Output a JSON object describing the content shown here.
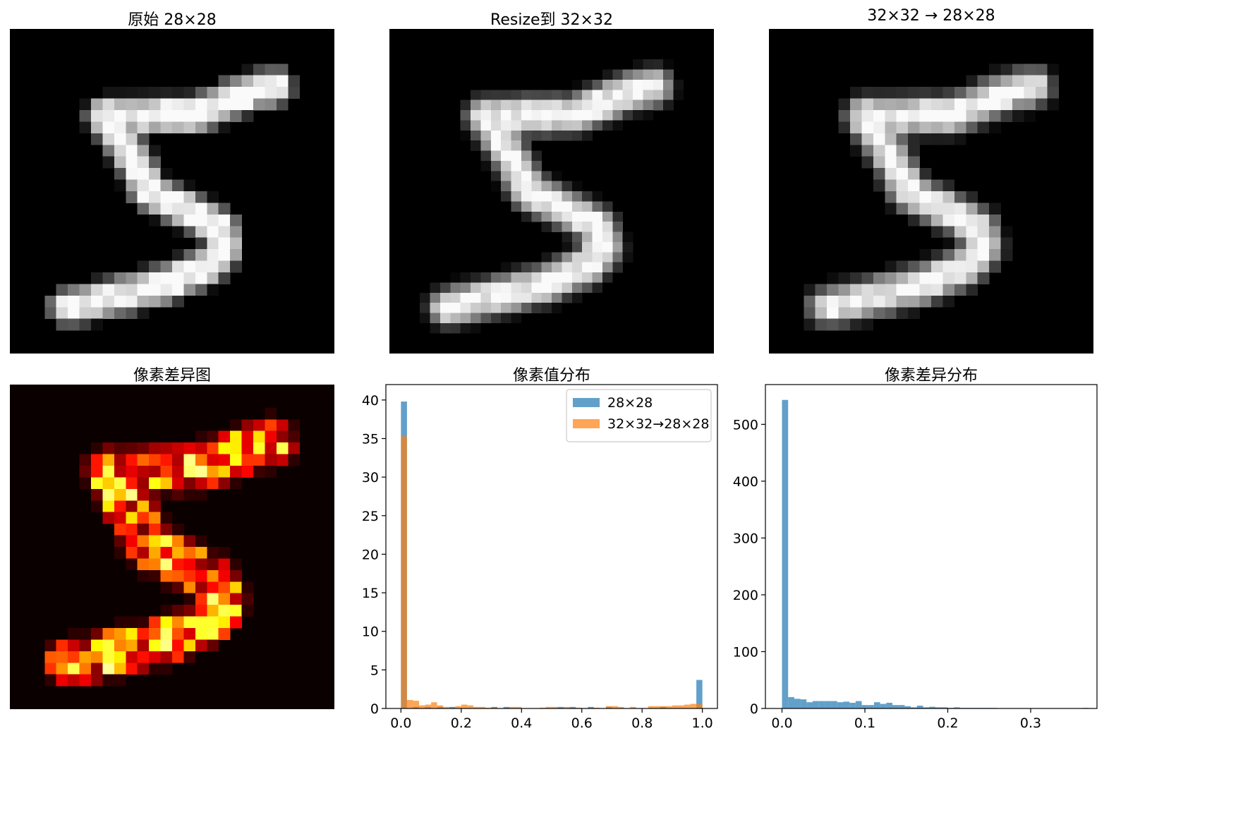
{
  "panels": {
    "original": {
      "title": "原始 28×28"
    },
    "resized": {
      "title": "Resize到 32×32"
    },
    "back": {
      "title": "32×32 → 28×28"
    },
    "diffmap": {
      "title": "像素差异图"
    },
    "hist_pixels": {
      "title": "像素值分布"
    },
    "hist_diff": {
      "title": "像素差异分布"
    }
  },
  "colors": {
    "series_blue": "#1f77b4",
    "series_orange": "#ff7f0e",
    "image_bg": "#000000",
    "heat_low": "#0b0000",
    "heat_high": "#ffffff"
  },
  "chart_data": [
    {
      "type": "heatmap",
      "title": "原始 28×28",
      "colormap": "gray",
      "shape": [
        28,
        28
      ],
      "description_values": "MNIST digit 5 grayscale image"
    },
    {
      "type": "heatmap",
      "title": "Resize到 32×32",
      "colormap": "gray",
      "shape": [
        32,
        32
      ]
    },
    {
      "type": "heatmap",
      "title": "32×32 → 28×28",
      "colormap": "gray",
      "shape": [
        28,
        28
      ]
    },
    {
      "type": "heatmap",
      "title": "像素差异图",
      "colormap": "hot",
      "shape": [
        28,
        28
      ]
    },
    {
      "type": "bar",
      "title": "像素值分布",
      "xlim": [
        -0.05,
        1.05
      ],
      "ylim": [
        0,
        42
      ],
      "xticks": [
        "0.0",
        "0.2",
        "0.4",
        "0.6",
        "0.8",
        "1.0"
      ],
      "yticks": [
        "0",
        "5",
        "10",
        "15",
        "20",
        "25",
        "30",
        "35",
        "40"
      ],
      "legend_position": "top-right",
      "bin_width": 0.02,
      "series": [
        {
          "name": "28×28",
          "color": "#1f77b4",
          "bins": [
            [
              0.0,
              39.8
            ],
            [
              0.04,
              0.2
            ],
            [
              0.08,
              0.2
            ],
            [
              0.12,
              0.2
            ],
            [
              0.16,
              0.2
            ],
            [
              0.3,
              0.2
            ],
            [
              0.34,
              0.2
            ],
            [
              0.52,
              0.2
            ],
            [
              0.56,
              0.2
            ],
            [
              0.62,
              0.2
            ],
            [
              0.68,
              0.2
            ],
            [
              0.86,
              0.2
            ],
            [
              0.98,
              3.7
            ]
          ]
        },
        {
          "name": "32×32→28×28",
          "color": "#ff7f0e",
          "bins": [
            [
              0.0,
              35.3
            ],
            [
              0.02,
              1.1
            ],
            [
              0.04,
              1.0
            ],
            [
              0.06,
              0.4
            ],
            [
              0.08,
              0.5
            ],
            [
              0.1,
              0.8
            ],
            [
              0.12,
              0.4
            ],
            [
              0.14,
              0.2
            ],
            [
              0.18,
              0.3
            ],
            [
              0.2,
              0.5
            ],
            [
              0.22,
              0.4
            ],
            [
              0.24,
              0.2
            ],
            [
              0.26,
              0.2
            ],
            [
              0.28,
              0.1
            ],
            [
              0.3,
              0.1
            ],
            [
              0.36,
              0.2
            ],
            [
              0.38,
              0.2
            ],
            [
              0.46,
              0.1
            ],
            [
              0.48,
              0.2
            ],
            [
              0.5,
              0.2
            ],
            [
              0.54,
              0.2
            ],
            [
              0.58,
              0.1
            ],
            [
              0.64,
              0.1
            ],
            [
              0.68,
              0.3
            ],
            [
              0.7,
              0.3
            ],
            [
              0.72,
              0.2
            ],
            [
              0.76,
              0.2
            ],
            [
              0.82,
              0.3
            ],
            [
              0.84,
              0.3
            ],
            [
              0.86,
              0.3
            ],
            [
              0.88,
              0.3
            ],
            [
              0.9,
              0.4
            ],
            [
              0.92,
              0.4
            ],
            [
              0.94,
              0.5
            ],
            [
              0.96,
              0.6
            ],
            [
              0.98,
              0.6
            ]
          ]
        }
      ]
    },
    {
      "type": "bar",
      "title": "像素差异分布",
      "xlim": [
        -0.02,
        0.38
      ],
      "ylim": [
        0,
        570
      ],
      "xticks": [
        "0.0",
        "0.1",
        "0.2",
        "0.3"
      ],
      "yticks": [
        "0",
        "100",
        "200",
        "300",
        "400",
        "500"
      ],
      "bin_width": 0.0074,
      "series": [
        {
          "color": "#1f77b4",
          "values": [
            543,
            20,
            17,
            16,
            11,
            13,
            13,
            13,
            13,
            11,
            12,
            10,
            13,
            6,
            6,
            11,
            8,
            10,
            6,
            6,
            4,
            2,
            5,
            2,
            3,
            2,
            2,
            1,
            2,
            1,
            1,
            1,
            1,
            1,
            1,
            0,
            0,
            0,
            0,
            0,
            0,
            0,
            0,
            0,
            0,
            0,
            0,
            0,
            0,
            1
          ]
        }
      ]
    }
  ]
}
